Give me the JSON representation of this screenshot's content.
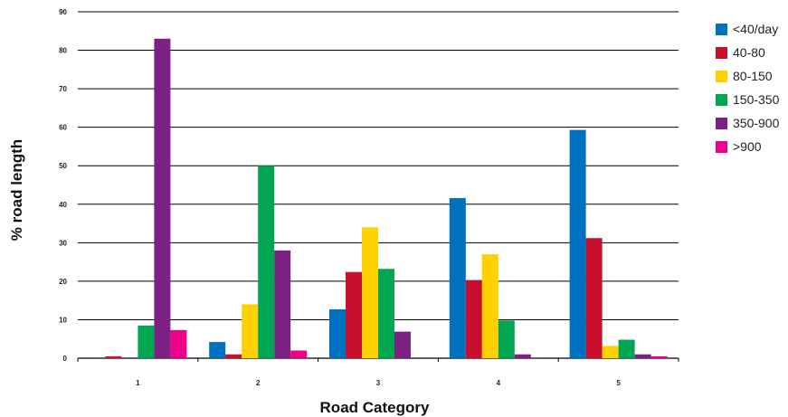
{
  "chart_data": {
    "type": "bar",
    "title": "",
    "xlabel": "Road Category",
    "ylabel": "% road length",
    "categories": [
      "1",
      "2",
      "3",
      "4",
      "5"
    ],
    "ylim": [
      0,
      90
    ],
    "yticks": [
      "0",
      "10",
      "20",
      "30",
      "40",
      "50",
      "60",
      "70",
      "80",
      "90"
    ],
    "grid": true,
    "legend_position": "right",
    "series": [
      {
        "name": "<40/day",
        "color": "#0070c0",
        "values": [
          0,
          4.2,
          12.7,
          41.6,
          59.3
        ]
      },
      {
        "name": "40-80",
        "color": "#c8102e",
        "values": [
          0.5,
          1.0,
          22.4,
          20.3,
          31.2
        ]
      },
      {
        "name": "80-150",
        "color": "#ffd100",
        "values": [
          0,
          14.0,
          34.0,
          27.0,
          3.2
        ]
      },
      {
        "name": "150-350",
        "color": "#00a651",
        "values": [
          8.5,
          50.0,
          23.2,
          9.8,
          4.8
        ]
      },
      {
        "name": "350-900",
        "color": "#7b2183",
        "values": [
          83.0,
          28.0,
          6.9,
          1.0,
          1.0
        ]
      },
      {
        "name": ">900",
        "color": "#ec008c",
        "values": [
          7.3,
          2.0,
          0,
          0,
          0.5
        ]
      }
    ]
  }
}
